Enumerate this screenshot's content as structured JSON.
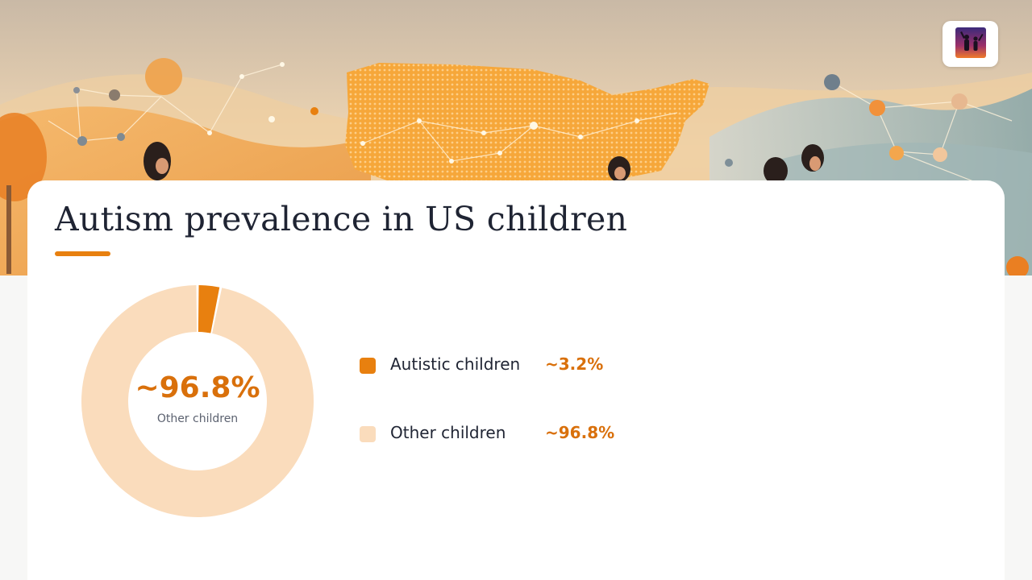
{
  "slide": {
    "title": "Autism prevalence in US children"
  },
  "colors": {
    "accent": "#e8800f",
    "accent_text": "#d9700b",
    "light_segment": "#fadcbc",
    "title_text": "#1f2433"
  },
  "icons": {
    "logo": "family-silhouette-logo-icon"
  },
  "donut_center": {
    "value": "~96.8%",
    "label": "Other children"
  },
  "chart_data": {
    "type": "pie",
    "style": "donut",
    "title": "Autism prevalence in US children",
    "categories": [
      "Autistic children",
      "Other children"
    ],
    "values": [
      3.2,
      96.8
    ],
    "value_labels": [
      "~3.2%",
      "~96.8%"
    ],
    "colors": [
      "#e8800f",
      "#fadcbc"
    ],
    "legend_placement": "right"
  }
}
